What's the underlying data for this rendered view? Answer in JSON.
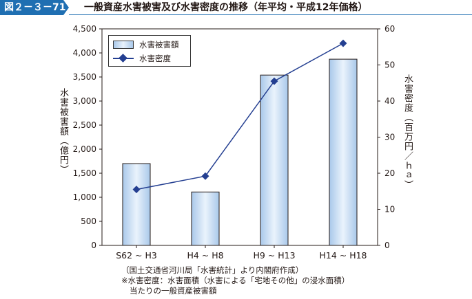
{
  "header": {
    "figure_number": "図２－３－71",
    "title": "一般資産水害被害及び水害密度の推移（年平均・平成12年価格）"
  },
  "chart_data": {
    "type": "bar+line",
    "categories": [
      "S62 ~ H3",
      "H4 ~ H8",
      "H9 ~ H13",
      "H14 ~ H18"
    ],
    "series": [
      {
        "name": "水害被害額",
        "type": "bar",
        "axis": "left",
        "values": [
          1700,
          1110,
          3540,
          3870
        ]
      },
      {
        "name": "水害密度",
        "type": "line",
        "axis": "right",
        "values": [
          15.5,
          19.2,
          45.5,
          56.0
        ]
      }
    ],
    "ylabel_left": "水害被害額（億円）",
    "ylabel_right": "水害密度（百万円／ｈａ）",
    "ylim_left": [
      0,
      4500
    ],
    "ylim_right": [
      0,
      60
    ],
    "yticks_left": [
      "0",
      "500",
      "1,000",
      "1,500",
      "2,000",
      "2,500",
      "3,000",
      "3,500",
      "4,000",
      "4,500"
    ],
    "yticks_right": [
      "0",
      "10",
      "20",
      "30",
      "40",
      "50",
      "60"
    ],
    "legend_position": "top-left",
    "grid": false,
    "colors": {
      "bar": "#a9c8ea",
      "bar_highlight": "#eaf3fc",
      "line": "#243f91",
      "accent": "#1f6fb2"
    }
  },
  "notes": [
    "（国土交通省河川局「水害統計」より内閣府作成）",
    "※水害密度：水害面積（水害による「宅地その他」の浸水面積）",
    "当たりの一般資産被害額"
  ]
}
